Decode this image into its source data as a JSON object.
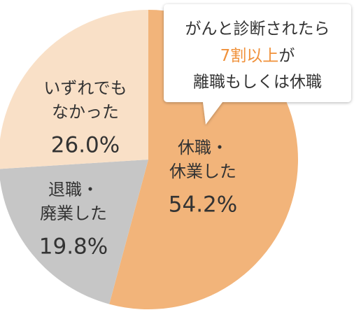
{
  "chart_data": {
    "type": "pie",
    "categories": [
      [
        "休職・",
        "休業した"
      ],
      [
        "退職・",
        "廃業した"
      ],
      [
        "いずれでも",
        "なかった"
      ]
    ],
    "values": [
      54.2,
      19.8,
      26.0
    ],
    "value_labels": [
      "54.2%",
      "19.8%",
      "26.0%"
    ],
    "colors": [
      "#f2b47a",
      "#c6c6c6",
      "#f9e0c7"
    ],
    "annotation": {
      "line1": "がんと診断されたら",
      "highlight": "7割以上",
      "highlight_rest": "が",
      "line3": "離職もしくは休職",
      "highlight_color": "#f0913a"
    }
  }
}
